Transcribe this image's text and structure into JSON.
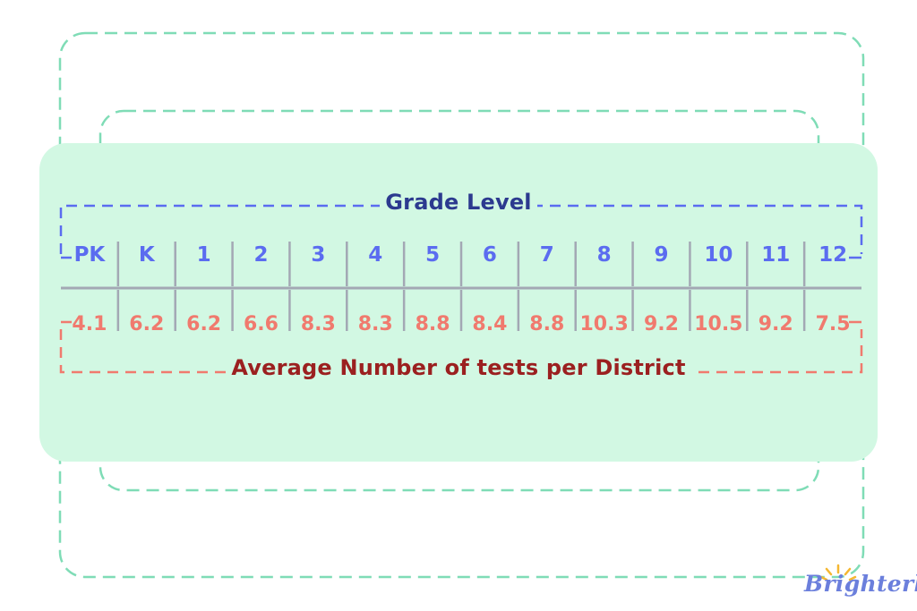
{
  "colors": {
    "panel": "#d2f8e3",
    "decor_dash": "#7fdcb6",
    "grade_text": "#5b6cf0",
    "grade_title": "#2c3a8f",
    "grade_bracket": "#5b6cf0",
    "value_text": "#f07a6e",
    "value_title": "#9b2020",
    "value_bracket": "#f07a6e",
    "divider": "#a3a8b4"
  },
  "chart_data": {
    "type": "table",
    "header_title": "Grade Level",
    "footer_title": "Average Number of tests per District",
    "categories": [
      "PK",
      "K",
      "1",
      "2",
      "3",
      "4",
      "5",
      "6",
      "7",
      "8",
      "9",
      "10",
      "11",
      "12"
    ],
    "values": [
      4.1,
      6.2,
      6.2,
      6.6,
      8.3,
      8.3,
      8.8,
      8.4,
      8.8,
      10.3,
      9.2,
      10.5,
      9.2,
      7.5
    ],
    "value_labels": [
      "4.1",
      "6.2",
      "6.2",
      "6.6",
      "8.3",
      "8.3",
      "8.8",
      "8.4",
      "8.8",
      "10.3",
      "9.2",
      "10.5",
      "9.2",
      "7.5"
    ]
  },
  "brand": {
    "logo_text": "Brighterly",
    "logo_icon": "sun-rays-icon"
  }
}
